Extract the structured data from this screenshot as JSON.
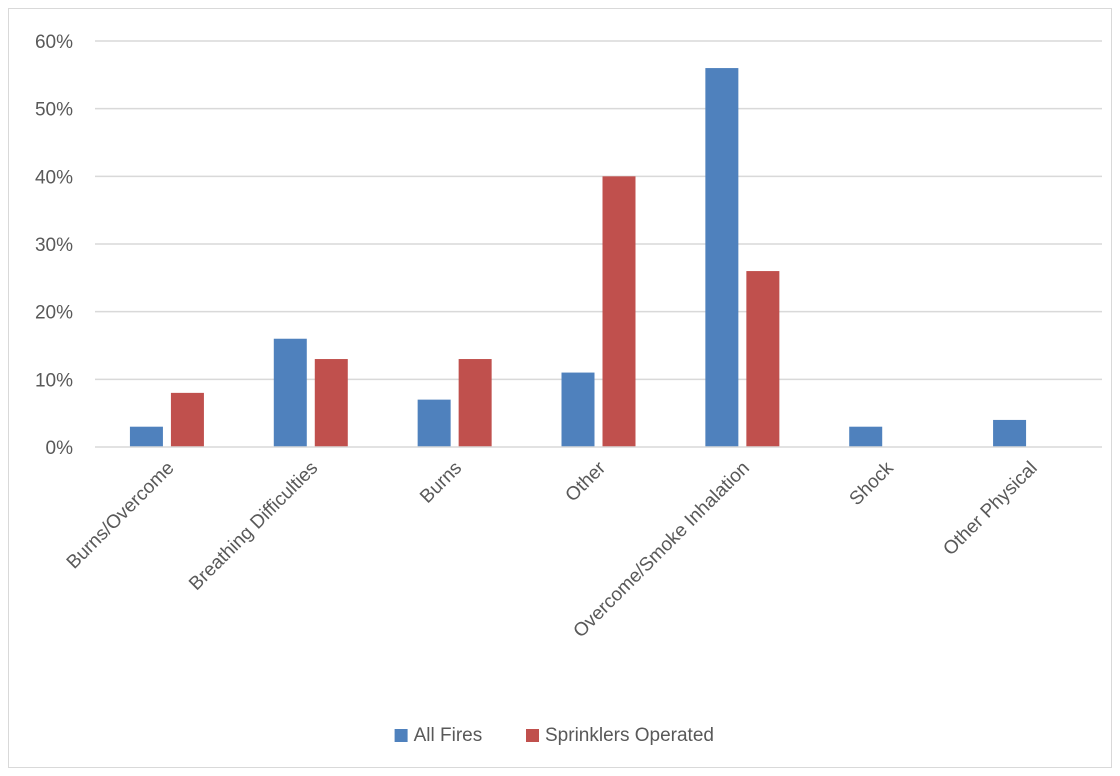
{
  "chart_data": {
    "type": "bar",
    "categories": [
      "Burns/Overcome",
      "Breathing Difficulties",
      "Burns",
      "Other",
      "Overcome/Smoke Inhalation",
      "Shock",
      "Other Physical"
    ],
    "series": [
      {
        "name": "All Fires",
        "color": "#4f81bd",
        "values": [
          3,
          16,
          7,
          11,
          56,
          3,
          4
        ]
      },
      {
        "name": "Sprinklers Operated",
        "color": "#c0504d",
        "values": [
          8,
          13,
          13,
          40,
          26,
          null,
          null
        ]
      }
    ],
    "y_unit": "%",
    "ylim": [
      0,
      60
    ],
    "yticks": [
      0,
      10,
      20,
      30,
      40,
      50,
      60
    ],
    "ytick_labels": [
      "0%",
      "10%",
      "20%",
      "30%",
      "40%",
      "50%",
      "60%"
    ],
    "grid": true,
    "legend_position": "bottom",
    "x_label_rotation": "diagonal"
  }
}
